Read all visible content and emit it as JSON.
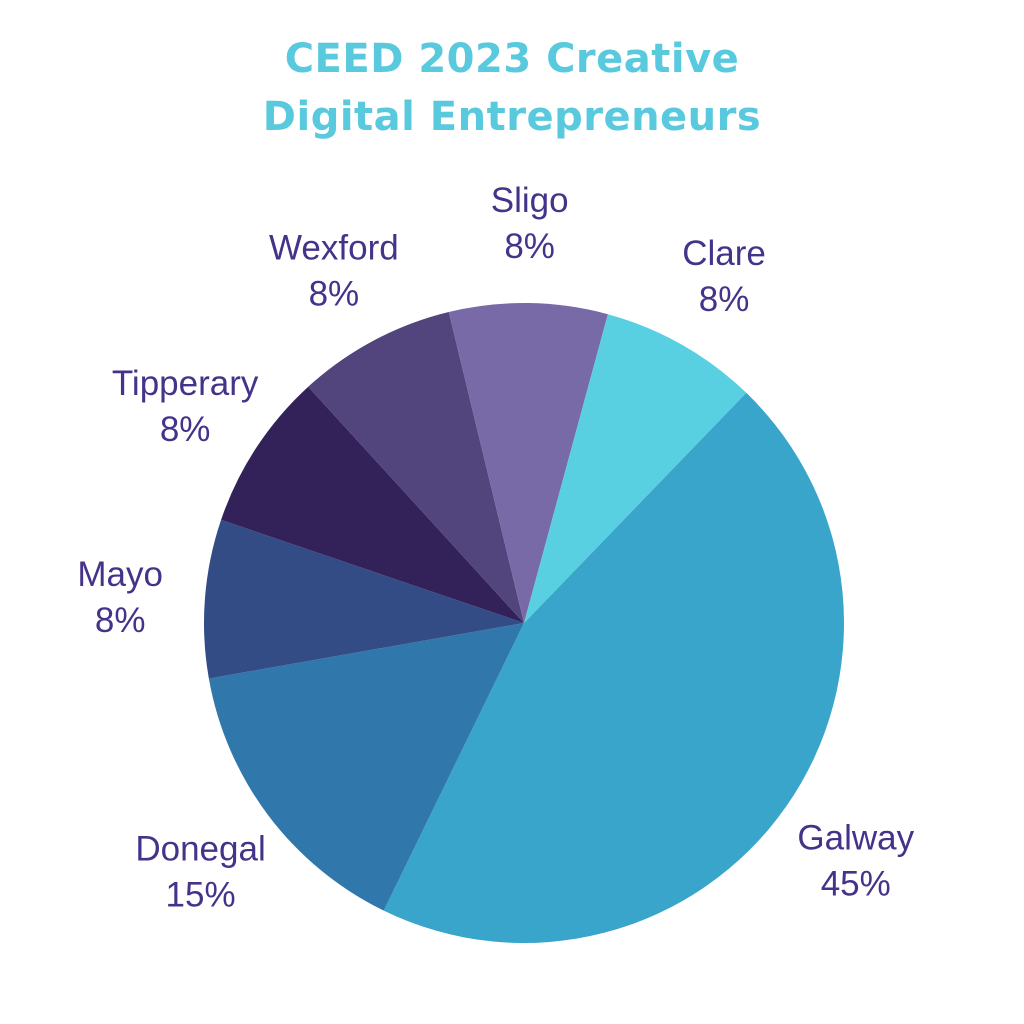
{
  "colors": {
    "title": "#59c9dd",
    "label": "#45338a",
    "background": "#ffffff"
  },
  "chart_data": {
    "type": "pie",
    "title": [
      "CEED 2023 Creative",
      "Digital Entrepreneurs"
    ],
    "slices": [
      {
        "name": "Galway",
        "value": 45,
        "label": "45%",
        "color": "#3aa5cb"
      },
      {
        "name": "Donegal",
        "value": 15,
        "label": "15%",
        "color": "#3078ab"
      },
      {
        "name": "Mayo",
        "value": 8,
        "label": "8%",
        "color": "#334c85"
      },
      {
        "name": "Tipperary",
        "value": 8,
        "label": "8%",
        "color": "#33225a"
      },
      {
        "name": "Wexford",
        "value": 8,
        "label": "8%",
        "color": "#52447d"
      },
      {
        "name": "Sligo",
        "value": 8,
        "label": "8%",
        "color": "#786aa7"
      },
      {
        "name": "Clare",
        "value": 8,
        "label": "8%",
        "color": "#59d0e1"
      }
    ],
    "start_angle_deg": 44,
    "direction": "clockwise",
    "legend": "none",
    "labels": "outside"
  }
}
